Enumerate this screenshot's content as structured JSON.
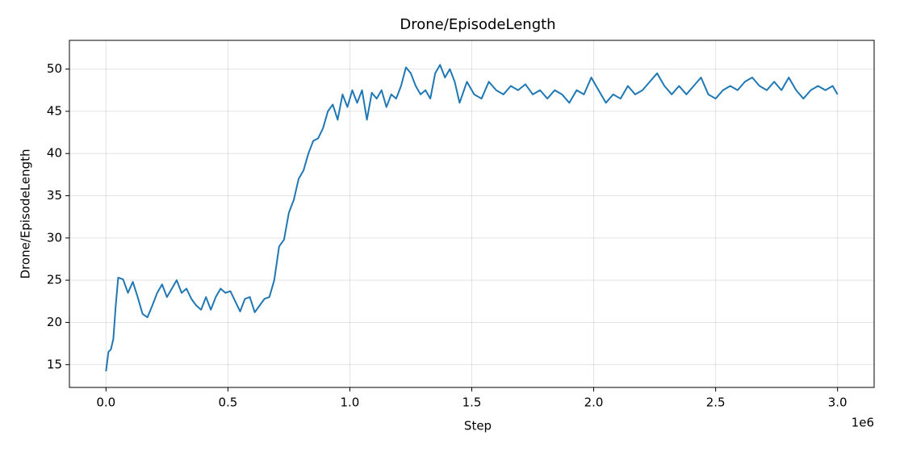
{
  "chart_data": {
    "type": "line",
    "title": "Drone/EpisodeLength",
    "x_label": "Step",
    "y_label": "Drone/EpisodeLength",
    "x_offset_label": "1e6",
    "x": [
      0.0,
      0.01,
      0.02,
      0.03,
      0.04,
      0.05,
      0.07,
      0.09,
      0.11,
      0.13,
      0.15,
      0.17,
      0.19,
      0.21,
      0.23,
      0.25,
      0.27,
      0.29,
      0.31,
      0.33,
      0.35,
      0.37,
      0.39,
      0.41,
      0.43,
      0.45,
      0.47,
      0.49,
      0.51,
      0.53,
      0.55,
      0.57,
      0.59,
      0.61,
      0.63,
      0.65,
      0.67,
      0.69,
      0.71,
      0.73,
      0.75,
      0.77,
      0.79,
      0.81,
      0.83,
      0.85,
      0.87,
      0.89,
      0.91,
      0.93,
      0.95,
      0.97,
      0.99,
      1.01,
      1.03,
      1.05,
      1.07,
      1.09,
      1.11,
      1.13,
      1.15,
      1.17,
      1.19,
      1.21,
      1.23,
      1.25,
      1.27,
      1.29,
      1.31,
      1.33,
      1.35,
      1.37,
      1.39,
      1.41,
      1.43,
      1.45,
      1.48,
      1.51,
      1.54,
      1.57,
      1.6,
      1.63,
      1.66,
      1.69,
      1.72,
      1.75,
      1.78,
      1.81,
      1.84,
      1.87,
      1.9,
      1.93,
      1.96,
      1.99,
      2.02,
      2.05,
      2.08,
      2.11,
      2.14,
      2.17,
      2.2,
      2.23,
      2.26,
      2.29,
      2.32,
      2.35,
      2.38,
      2.41,
      2.44,
      2.47,
      2.5,
      2.53,
      2.56,
      2.59,
      2.62,
      2.65,
      2.68,
      2.71,
      2.74,
      2.77,
      2.8,
      2.83,
      2.86,
      2.89,
      2.92,
      2.95,
      2.98,
      3.0
    ],
    "series": [
      {
        "name": "Drone/EpisodeLength",
        "color": "#1f77b4",
        "values": [
          14.2,
          16.5,
          16.8,
          18,
          22,
          25.3,
          25.1,
          23.5,
          24.8,
          23,
          21,
          20.6,
          22,
          23.5,
          24.5,
          23,
          24,
          25,
          23.5,
          24,
          22.8,
          22,
          21.5,
          23,
          21.5,
          23,
          24,
          23.5,
          23.7,
          22.5,
          21.3,
          22.8,
          23,
          21.2,
          22,
          22.8,
          23,
          25,
          29,
          29.8,
          33,
          34.5,
          37,
          38,
          40,
          41.5,
          41.8,
          43,
          45,
          45.8,
          44,
          47,
          45.5,
          47.5,
          46,
          47.5,
          44,
          47.2,
          46.5,
          47.5,
          45.5,
          47,
          46.5,
          48,
          50.2,
          49.5,
          48,
          47,
          47.5,
          46.5,
          49.5,
          50.5,
          49,
          50,
          48.5,
          46,
          48.5,
          47,
          46.5,
          48.5,
          47.5,
          47,
          48,
          47.5,
          48.2,
          47,
          47.5,
          46.5,
          47.5,
          47,
          46,
          47.5,
          47,
          49,
          47.5,
          46,
          47,
          46.5,
          48,
          47,
          47.5,
          48.5,
          49.5,
          48,
          47,
          48,
          47,
          48,
          49,
          47,
          46.5,
          47.5,
          48,
          47.5,
          48.5,
          49,
          48,
          47.5,
          48.5,
          47.5,
          49,
          47.5,
          46.5,
          47.5,
          48,
          47.5,
          48,
          47
        ]
      }
    ],
    "xlim": [
      -0.15,
      3.15
    ],
    "ylim": [
      12.3,
      53.4
    ],
    "xticks": [
      {
        "value": 0,
        "label": "0.0"
      },
      0.5,
      {
        "value": 1,
        "label": "1.0"
      },
      1.5,
      {
        "value": 2,
        "label": "2.0"
      },
      2.5,
      {
        "value": 3,
        "label": "3.0"
      }
    ],
    "yticks": [
      15,
      20,
      25,
      30,
      35,
      40,
      45,
      50
    ],
    "grid": true
  }
}
